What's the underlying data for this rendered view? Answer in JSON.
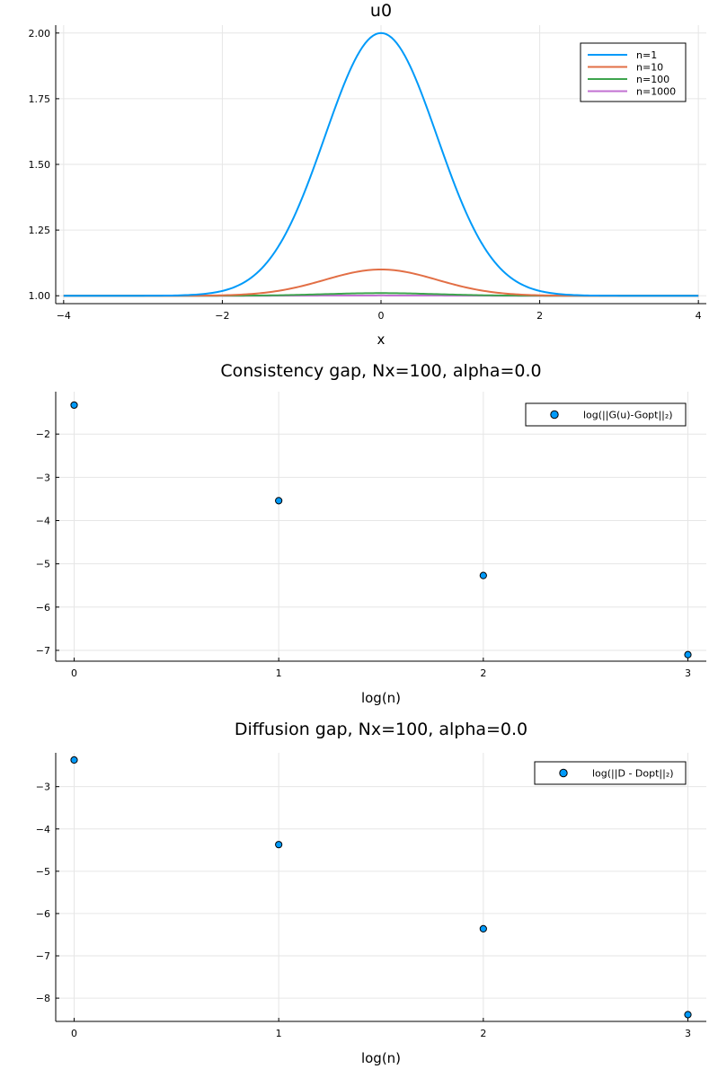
{
  "chart_data": [
    {
      "type": "line",
      "title": "u0",
      "xlabel": "x",
      "ylabel": "",
      "xlim": [
        -4.1,
        4.1
      ],
      "ylim": [
        0.97,
        2.03
      ],
      "xticks": [
        -4,
        -2,
        0,
        2,
        4
      ],
      "xtick_labels": [
        "−4",
        "−2",
        "0",
        "2",
        "4"
      ],
      "yticks": [
        1.0,
        1.25,
        1.5,
        1.75,
        2.0
      ],
      "ytick_labels": [
        "1.00",
        "1.25",
        "1.50",
        "1.75",
        "2.00"
      ],
      "grid": true,
      "legend": "top-right",
      "series": [
        {
          "name": "n=1",
          "color": "#009af9",
          "amplitude": 1.0
        },
        {
          "name": "n=10",
          "color": "#e26f46",
          "amplitude": 0.1
        },
        {
          "name": "n=100",
          "color": "#3da44d",
          "amplitude": 0.01
        },
        {
          "name": "n=1000",
          "color": "#c271d2",
          "amplitude": 0.001
        }
      ]
    },
    {
      "type": "scatter",
      "title": "Consistency gap, Nx=100, alpha=0.0",
      "xlabel": "log(n)",
      "ylabel": "",
      "xlim": [
        -0.09,
        3.09
      ],
      "ylim": [
        -7.25,
        -1.02
      ],
      "xticks": [
        0,
        1,
        2,
        3
      ],
      "xtick_labels": [
        "0",
        "1",
        "2",
        "3"
      ],
      "yticks": [
        -7,
        -6,
        -5,
        -4,
        -3,
        -2
      ],
      "ytick_labels": [
        "−7",
        "−6",
        "−5",
        "−4",
        "−3",
        "−2"
      ],
      "grid": true,
      "legend": "top-right",
      "series": [
        {
          "name": "log(||G(u)-Gopt||₂)",
          "color": "#009af9",
          "x": [
            0,
            1,
            2,
            3
          ],
          "y": [
            -1.33,
            -3.54,
            -5.27,
            -7.1
          ]
        }
      ]
    },
    {
      "type": "scatter",
      "title": "Diffusion gap, Nx=100, alpha=0.0",
      "xlabel": "log(n)",
      "ylabel": "",
      "xlim": [
        -0.09,
        3.09
      ],
      "ylim": [
        -8.55,
        -2.2
      ],
      "xticks": [
        0,
        1,
        2,
        3
      ],
      "xtick_labels": [
        "0",
        "1",
        "2",
        "3"
      ],
      "yticks": [
        -8,
        -7,
        -6,
        -5,
        -4,
        -3
      ],
      "ytick_labels": [
        "−8",
        "−7",
        "−6",
        "−5",
        "−4",
        "−3"
      ],
      "grid": true,
      "legend": "top-right",
      "series": [
        {
          "name": "log(||D - Dopt||₂)",
          "color": "#009af9",
          "x": [
            0,
            1,
            2,
            3
          ],
          "y": [
            -2.37,
            -4.37,
            -6.36,
            -8.39
          ]
        }
      ]
    }
  ]
}
